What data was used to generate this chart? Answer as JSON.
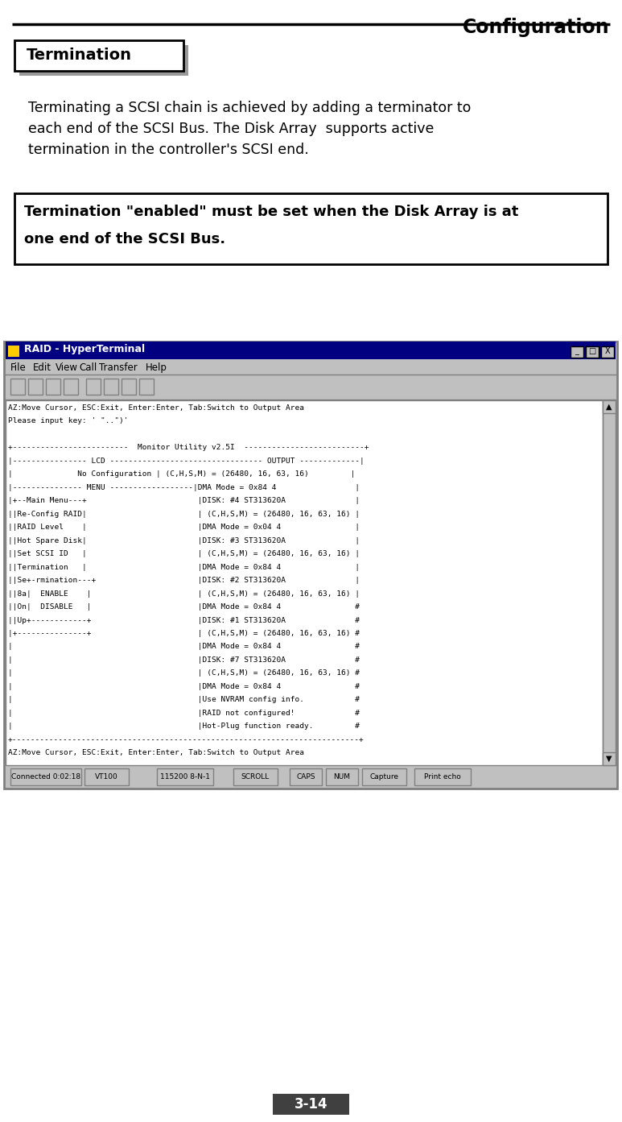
{
  "page_title": "Configuration",
  "section_title": "Termination",
  "body_text_lines": [
    "Terminating a SCSI chain is achieved by adding a terminator to",
    "each end of the SCSI Bus. The Disk Array  supports active",
    "termination in the controller's SCSI end."
  ],
  "note_text_lines": [
    "Termination \"enabled\" must be set when the Disk Array is at",
    "one end of the SCSI Bus."
  ],
  "page_number": "3-14",
  "bg_color": "#ffffff",
  "title_color": "#000000",
  "terminal_lines": [
    "AZ:Move Cursor, ESC:Exit, Enter:Enter, Tab:Switch to Output Area",
    "Please input key: ' \"..\")'",
    "",
    "+-------------------------  Monitor Utility v2.5I  --------------------------+",
    "|---------------- LCD --------------------------------- OUTPUT -------------|",
    "|              No Configuration | (C,H,S,M) = (26480, 16, 63, 16)         |",
    "|--------------- MENU ------------------|DMA Mode = 0x84 4                 |",
    "|+--Main Menu---+                        |DISK: #4 ST313620A               |",
    "||Re-Config RAID|                        | (C,H,S,M) = (26480, 16, 63, 16) |",
    "||RAID Level    |                        |DMA Mode = 0x04 4                |",
    "||Hot Spare Disk|                        |DISK: #3 ST313620A               |",
    "||Set SCSI ID   |                        | (C,H,S,M) = (26480, 16, 63, 16) |",
    "||Termination   |                        |DMA Mode = 0x84 4                |",
    "||Se+-rmination---+                      |DISK: #2 ST313620A               |",
    "||8a|  ENABLE    |                       | (C,H,S,M) = (26480, 16, 63, 16) |",
    "||On|  DISABLE   |                       |DMA Mode = 0x84 4                #",
    "||Up+------------+                       |DISK: #1 ST313620A               #",
    "|+---------------+                       | (C,H,S,M) = (26480, 16, 63, 16) #",
    "|                                        |DMA Mode = 0x84 4                #",
    "|                                        |DISK: #7 ST313620A               #",
    "|                                        | (C,H,S,M) = (26480, 16, 63, 16) #",
    "|                                        |DMA Mode = 0x84 4                #",
    "|                                        |Use NVRAM config info.           #",
    "|                                        |RAID not configured!             #",
    "|                                        |Hot-Plug function ready.         #",
    "+---------------------------------------------------------------------------+",
    "AZ:Move Cursor, ESC:Exit, Enter:Enter, Tab:Switch to Output Area"
  ],
  "status_items": [
    "Connected 0:02:18",
    "VT100",
    "115200 8-N-1",
    "SCROLL",
    "CAPS",
    "NUM",
    "Capture",
    "Print echo"
  ]
}
